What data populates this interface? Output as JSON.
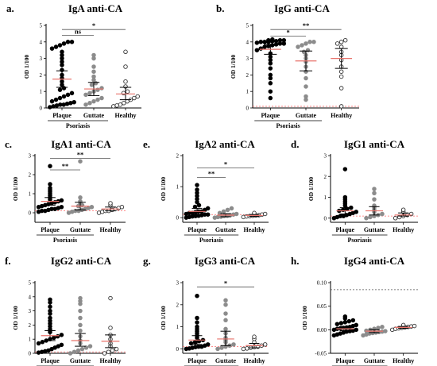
{
  "figure": {
    "group_label": "Psoriasis",
    "ylabel": "OD 1/100",
    "categories": [
      "Plaque",
      "Guttate",
      "Healthy"
    ]
  },
  "colors": {
    "plaque": "#000000",
    "guttate": "#8c8c8c",
    "healthy_fill": "#ffffff",
    "healthy_stroke": "#333333",
    "mean_line": "#e8736b",
    "error_bar": "#000000",
    "ref_line": "#ff6b6b",
    "ref_line_h": "#555555"
  },
  "chart_data": [
    {
      "panel": "a.",
      "title": "IgA anti-CA",
      "type": "scatter",
      "ylim": [
        0,
        5
      ],
      "yticks": [
        0,
        1,
        2,
        3,
        4,
        5
      ],
      "yfmt": 0,
      "ref_line": null,
      "series": [
        {
          "category": "Plaque",
          "mean": 1.75,
          "ci": [
            1.25,
            2.25
          ],
          "values": [
            0.05,
            0.1,
            0.15,
            0.2,
            0.2,
            0.25,
            0.3,
            0.35,
            0.4,
            0.5,
            0.6,
            0.7,
            0.8,
            0.9,
            1.1,
            1.2,
            1.4,
            1.6,
            1.8,
            2.0,
            2.3,
            2.6,
            2.8,
            3.0,
            3.2,
            3.4,
            3.6,
            3.7,
            3.8,
            3.9,
            4.0,
            4.0
          ]
        },
        {
          "category": "Guttate",
          "mean": 1.15,
          "ci": [
            0.75,
            1.55
          ],
          "values": [
            0.2,
            0.3,
            0.4,
            0.5,
            0.6,
            0.8,
            0.9,
            1.0,
            1.1,
            1.2,
            1.4,
            1.5,
            1.7,
            1.9,
            2.2,
            2.5,
            3.0,
            3.2
          ]
        },
        {
          "category": "Healthy",
          "mean": 0.85,
          "ci": [
            0.5,
            1.25
          ],
          "values": [
            0.1,
            0.15,
            0.2,
            0.3,
            0.4,
            0.5,
            0.6,
            0.7,
            0.9,
            1.0,
            1.3,
            1.6,
            2.5,
            3.4
          ]
        }
      ],
      "significance": [
        {
          "from": "Plaque",
          "to": "Guttate",
          "label": "ns",
          "y": 4.4
        },
        {
          "from": "Plaque",
          "to": "Healthy",
          "label": "*",
          "y": 4.75
        }
      ]
    },
    {
      "panel": "b.",
      "title": "IgG anti-CA",
      "type": "scatter",
      "ylim": [
        0,
        5
      ],
      "yticks": [
        0,
        1,
        2,
        3,
        4,
        5
      ],
      "yfmt": 0,
      "ref_line": 0.1,
      "series": [
        {
          "category": "Plaque",
          "mean": 3.55,
          "ci": [
            3.25,
            3.85
          ],
          "values": [
            0.6,
            1.0,
            1.5,
            1.8,
            2.0,
            2.4,
            2.7,
            2.9,
            3.1,
            3.3,
            3.5,
            3.6,
            3.7,
            3.75,
            3.8,
            3.85,
            3.9,
            3.9,
            3.95,
            4.0,
            4.0,
            4.0,
            4.05,
            4.05,
            4.1,
            4.1,
            4.1,
            4.15
          ]
        },
        {
          "category": "Guttate",
          "mean": 2.85,
          "ci": [
            2.25,
            3.45
          ],
          "values": [
            0.5,
            0.7,
            1.3,
            1.8,
            2.2,
            2.5,
            2.8,
            3.0,
            3.2,
            3.4,
            3.5,
            3.7,
            3.8,
            3.9,
            4.0,
            4.0
          ]
        },
        {
          "category": "Healthy",
          "mean": 3.0,
          "ci": [
            2.4,
            3.6
          ],
          "values": [
            0.1,
            1.2,
            1.9,
            2.2,
            2.5,
            2.9,
            3.2,
            3.4,
            3.7,
            3.9,
            4.0,
            4.1
          ]
        }
      ],
      "significance": [
        {
          "from": "Plaque",
          "to": "Guttate",
          "label": "*",
          "y": 4.35
        },
        {
          "from": "Plaque",
          "to": "Healthy",
          "label": "**",
          "y": 4.75
        }
      ]
    },
    {
      "panel": "c.",
      "title": "IgA1 anti-CA",
      "type": "scatter",
      "ylim": [
        -0.5,
        3
      ],
      "yticks": [
        0,
        1,
        2,
        3
      ],
      "yfmt": 0,
      "ref_line": 0.1,
      "series": [
        {
          "category": "Plaque",
          "mean": 0.6,
          "ci": [
            0.4,
            0.8
          ],
          "values": [
            0.05,
            0.1,
            0.1,
            0.15,
            0.2,
            0.2,
            0.25,
            0.3,
            0.3,
            0.35,
            0.4,
            0.45,
            0.5,
            0.55,
            0.6,
            0.65,
            0.7,
            0.8,
            0.9,
            1.0,
            1.1,
            1.2,
            1.3,
            1.5,
            2.45
          ]
        },
        {
          "category": "Guttate",
          "mean": 0.35,
          "ci": [
            0.15,
            0.55
          ],
          "values": [
            0.0,
            0.05,
            0.1,
            0.1,
            0.15,
            0.2,
            0.25,
            0.3,
            0.35,
            0.4,
            0.5,
            0.6,
            0.8,
            2.7
          ]
        },
        {
          "category": "Healthy",
          "mean": 0.2,
          "ci": [
            0.1,
            0.3
          ],
          "values": [
            0.0,
            0.05,
            0.1,
            0.1,
            0.15,
            0.2,
            0.25,
            0.3,
            0.4,
            0.5
          ]
        }
      ],
      "significance": [
        {
          "from": "Plaque",
          "to": "Guttate",
          "label": "**",
          "y": 2.25
        },
        {
          "from": "Plaque",
          "to": "Healthy",
          "label": "**",
          "y": 2.85
        }
      ]
    },
    {
      "panel": "e.",
      "title": "IgA2 anti-CA",
      "type": "scatter",
      "ylim": [
        -0.15,
        2
      ],
      "yticks": [
        0,
        1,
        2
      ],
      "yfmt": 0,
      "ref_line": 0.1,
      "series": [
        {
          "category": "Plaque",
          "mean": 0.2,
          "ci": [
            0.1,
            0.3
          ],
          "values": [
            0.0,
            0.02,
            0.04,
            0.05,
            0.06,
            0.08,
            0.1,
            0.1,
            0.12,
            0.15,
            0.15,
            0.18,
            0.2,
            0.2,
            0.25,
            0.3,
            0.35,
            0.4,
            0.5,
            0.6,
            0.7,
            0.8,
            0.9,
            1.05
          ]
        },
        {
          "category": "Guttate",
          "mean": 0.08,
          "ci": [
            0.03,
            0.13
          ],
          "values": [
            0.0,
            0.02,
            0.03,
            0.05,
            0.06,
            0.08,
            0.1,
            0.12,
            0.15,
            0.2,
            0.25,
            0.3
          ]
        },
        {
          "category": "Healthy",
          "mean": 0.07,
          "ci": [
            0.04,
            0.1
          ],
          "values": [
            0.02,
            0.04,
            0.05,
            0.06,
            0.07,
            0.08,
            0.1,
            0.12,
            0.15
          ]
        }
      ],
      "significance": [
        {
          "from": "Plaque",
          "to": "Guttate",
          "label": "**",
          "y": 1.3
        },
        {
          "from": "Plaque",
          "to": "Healthy",
          "label": "*",
          "y": 1.6
        }
      ]
    },
    {
      "panel": "d.",
      "title": "IgG1 anti-CA",
      "type": "scatter",
      "ylim": [
        -0.2,
        3
      ],
      "yticks": [
        0,
        1,
        2,
        3
      ],
      "yfmt": 0,
      "ref_line": 0.1,
      "series": [
        {
          "category": "Plaque",
          "mean": 0.35,
          "ci": [
            0.2,
            0.5
          ],
          "values": [
            0.0,
            0.05,
            0.1,
            0.1,
            0.15,
            0.2,
            0.25,
            0.3,
            0.35,
            0.4,
            0.45,
            0.5,
            0.6,
            0.7,
            0.8,
            0.9,
            1.0,
            2.35
          ]
        },
        {
          "category": "Guttate",
          "mean": 0.35,
          "ci": [
            0.15,
            0.55
          ],
          "values": [
            0.0,
            0.05,
            0.1,
            0.15,
            0.2,
            0.3,
            0.4,
            0.5,
            0.6,
            0.9,
            1.2,
            1.4
          ]
        },
        {
          "category": "Healthy",
          "mean": 0.15,
          "ci": [
            0.1,
            0.25
          ],
          "values": [
            0.0,
            0.05,
            0.1,
            0.15,
            0.2,
            0.3,
            0.4
          ]
        }
      ],
      "significance": []
    },
    {
      "panel": "f.",
      "title": "IgG2 anti-CA",
      "type": "scatter",
      "ylim": [
        0,
        5
      ],
      "yticks": [
        0,
        1,
        2,
        3,
        4,
        5
      ],
      "yfmt": 0,
      "ref_line": 0.1,
      "series": [
        {
          "category": "Plaque",
          "mean": 1.25,
          "ci": [
            0.9,
            1.6
          ],
          "values": [
            0.05,
            0.1,
            0.15,
            0.2,
            0.3,
            0.4,
            0.5,
            0.6,
            0.7,
            0.8,
            0.9,
            1.0,
            1.1,
            1.2,
            1.3,
            1.5,
            1.7,
            1.9,
            2.1,
            2.3,
            2.5,
            2.8,
            3.0,
            3.3,
            3.6,
            3.8
          ]
        },
        {
          "category": "Guttate",
          "mean": 0.9,
          "ci": [
            0.5,
            1.4
          ],
          "values": [
            0.0,
            0.1,
            0.2,
            0.3,
            0.4,
            0.5,
            0.7,
            0.9,
            1.2,
            1.6,
            2.0,
            2.5,
            3.0,
            3.5,
            3.7,
            3.9
          ]
        },
        {
          "category": "Healthy",
          "mean": 0.85,
          "ci": [
            0.4,
            1.3
          ],
          "values": [
            0.0,
            0.1,
            0.2,
            0.3,
            0.5,
            0.7,
            1.0,
            1.3,
            1.8,
            3.9
          ]
        }
      ],
      "significance": []
    },
    {
      "panel": "g.",
      "title": "IgG3 anti-CA",
      "type": "scatter",
      "ylim": [
        -0.2,
        3
      ],
      "yticks": [
        0,
        1,
        2,
        3
      ],
      "yfmt": 0,
      "ref_line": 0.1,
      "series": [
        {
          "category": "Plaque",
          "mean": 0.4,
          "ci": [
            0.2,
            0.6
          ],
          "values": [
            0.0,
            0.02,
            0.05,
            0.08,
            0.1,
            0.1,
            0.15,
            0.2,
            0.25,
            0.3,
            0.35,
            0.4,
            0.5,
            0.6,
            0.7,
            0.8,
            0.9,
            1.0,
            1.2,
            1.4,
            2.4
          ]
        },
        {
          "category": "Guttate",
          "mean": 0.45,
          "ci": [
            0.15,
            0.8
          ],
          "values": [
            0.0,
            0.05,
            0.1,
            0.15,
            0.2,
            0.3,
            0.4,
            0.5,
            0.7,
            0.9,
            1.3,
            1.6,
            2.0,
            2.2
          ]
        },
        {
          "category": "Healthy",
          "mean": 0.15,
          "ci": [
            0.05,
            0.25
          ],
          "values": [
            0.0,
            0.02,
            0.05,
            0.08,
            0.1,
            0.15,
            0.2,
            0.3,
            0.45,
            0.55
          ]
        }
      ],
      "significance": [
        {
          "from": "Plaque",
          "to": "Healthy",
          "label": "*",
          "y": 2.8
        }
      ]
    },
    {
      "panel": "h.",
      "title": "IgG4 anti-CA",
      "type": "scatter",
      "ylim": [
        -0.05,
        0.1
      ],
      "yticks": [
        -0.05,
        0.0,
        0.05,
        0.1
      ],
      "yfmt": 2,
      "ref_line": 0.085,
      "series": [
        {
          "category": "Plaque",
          "mean": 0.002,
          "ci": [
            -0.002,
            0.007
          ],
          "values": [
            -0.012,
            -0.01,
            -0.008,
            -0.006,
            -0.004,
            -0.003,
            -0.002,
            0.0,
            0.0,
            0.002,
            0.003,
            0.004,
            0.005,
            0.006,
            0.008,
            0.01,
            0.012,
            0.014,
            0.016,
            0.018,
            0.02,
            0.024,
            0.028
          ]
        },
        {
          "category": "Guttate",
          "mean": -0.003,
          "ci": [
            -0.006,
            0.0
          ],
          "values": [
            -0.012,
            -0.01,
            -0.008,
            -0.007,
            -0.006,
            -0.005,
            -0.004,
            -0.003,
            -0.002,
            0.0,
            0.002,
            0.004,
            0.006
          ]
        },
        {
          "category": "Healthy",
          "mean": 0.005,
          "ci": [
            0.003,
            0.007
          ],
          "values": [
            0.0,
            0.002,
            0.003,
            0.004,
            0.005,
            0.006,
            0.007,
            0.008,
            0.01
          ]
        }
      ],
      "significance": []
    }
  ]
}
